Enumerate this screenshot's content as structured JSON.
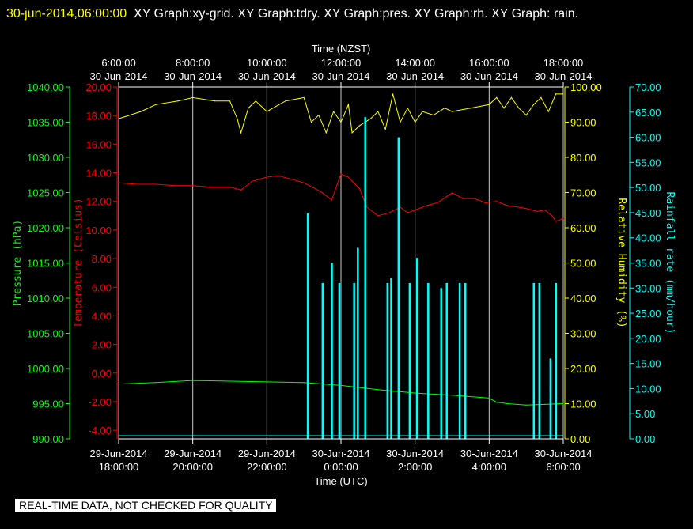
{
  "header": {
    "timestamp": "30-jun-2014,06:00:00",
    "graphs": "XY Graph:xy-grid.  XY Graph:tdry.  XY Graph:pres.  XY Graph:rh.  XY Graph: rain."
  },
  "notice": "REAL-TIME DATA, NOT CHECKED FOR QUALITY",
  "chart_data": {
    "type": "line",
    "top_axis_title": "Time (NZST)",
    "bottom_axis_title": "Time (UTC)",
    "top_ticks": [
      {
        "time": "6:00:00",
        "date": "30-Jun-2014"
      },
      {
        "time": "8:00:00",
        "date": "30-Jun-2014"
      },
      {
        "time": "10:00:00",
        "date": "30-Jun-2014"
      },
      {
        "time": "12:00:00",
        "date": "30-Jun-2014"
      },
      {
        "time": "14:00:00",
        "date": "30-Jun-2014"
      },
      {
        "time": "16:00:00",
        "date": "30-Jun-2014"
      },
      {
        "time": "18:00:00",
        "date": "30-Jun-2014"
      }
    ],
    "bottom_ticks": [
      {
        "date": "29-Jun-2014",
        "time": "18:00:00"
      },
      {
        "date": "29-Jun-2014",
        "time": "20:00:00"
      },
      {
        "date": "29-Jun-2014",
        "time": "22:00:00"
      },
      {
        "date": "30-Jun-2014",
        "time": "0:00:00"
      },
      {
        "date": "30-Jun-2014",
        "time": "2:00:00"
      },
      {
        "date": "30-Jun-2014",
        "time": "4:00:00"
      },
      {
        "date": "30-Jun-2014",
        "time": "6:00:00"
      }
    ],
    "x_utc_hours": [
      18,
      20,
      22,
      24,
      26,
      28,
      30
    ],
    "xlim_utc_hours": [
      18,
      30
    ],
    "axes": {
      "pressure": {
        "label": "Pressure (hPa)",
        "color": "#00ff00",
        "ylim": [
          990,
          1040
        ],
        "ticks": [
          "990.00",
          "995.00",
          "1000.00",
          "1005.00",
          "1010.00",
          "1015.00",
          "1020.00",
          "1025.00",
          "1030.00",
          "1035.00",
          "1040.00"
        ]
      },
      "temperature": {
        "label": "Temperature (Celsius)",
        "color": "#ff0000",
        "ylim": [
          -4.6,
          20
        ],
        "ticks": [
          "-4.00",
          "-2.00",
          "0.00",
          "2.00",
          "4.00",
          "6.00",
          "8.00",
          "10.00",
          "12.00",
          "14.00",
          "16.00",
          "18.00",
          "20.00"
        ]
      },
      "humidity": {
        "label": "Relative Humidity (%)",
        "color": "#ffff00",
        "ylim": [
          0,
          100
        ],
        "ticks": [
          "0.00",
          "10.00",
          "20.00",
          "30.00",
          "40.00",
          "50.00",
          "60.00",
          "70.00",
          "80.00",
          "90.00",
          "100.00"
        ]
      },
      "rainfall": {
        "label": "Rainfall rate (mm/hour)",
        "color": "#00ffff",
        "ylim": [
          0,
          70
        ],
        "ticks": [
          "0.00",
          "5.00",
          "10.00",
          "15.00",
          "20.00",
          "25.00",
          "30.00",
          "35.00",
          "40.00",
          "45.00",
          "50.00",
          "55.00",
          "60.00",
          "65.00",
          "70.00"
        ]
      }
    },
    "series": [
      {
        "name": "tdry",
        "axis": "temperature",
        "color": "#ff0000",
        "x": [
          18,
          18.5,
          19,
          19.5,
          20,
          20.5,
          21,
          21.3,
          21.6,
          22,
          22.3,
          22.6,
          23,
          23.3,
          23.5,
          23.75,
          23.9,
          24,
          24.2,
          24.5,
          24.7,
          25,
          25.3,
          25.6,
          25.8,
          26,
          26.3,
          26.6,
          27,
          27.3,
          27.6,
          27.9,
          28.2,
          28.5,
          28.8,
          29,
          29.3,
          29.5,
          29.7,
          29.8,
          30
        ],
        "values": [
          13.3,
          13.2,
          13.2,
          13.1,
          13.1,
          13.0,
          13.0,
          12.8,
          13.4,
          13.7,
          13.8,
          13.6,
          13.3,
          12.9,
          12.6,
          12.1,
          13.2,
          13.9,
          13.7,
          12.9,
          11.6,
          11.0,
          11.2,
          11.6,
          11.2,
          11.4,
          11.7,
          11.9,
          12.6,
          12.2,
          12.2,
          11.9,
          12.0,
          11.7,
          11.6,
          11.5,
          11.3,
          11.4,
          11.0,
          10.6,
          10.8
        ]
      },
      {
        "name": "pres",
        "axis": "pressure",
        "color": "#00ff00",
        "x": [
          18,
          19,
          20,
          21,
          22,
          23,
          24,
          25,
          26,
          27,
          28,
          28.2,
          28.5,
          29,
          29.5,
          30
        ],
        "values": [
          997.8,
          998.0,
          998.3,
          998.2,
          998.1,
          998.0,
          997.6,
          997.0,
          996.5,
          996.2,
          995.8,
          995.2,
          995.0,
          994.8,
          994.9,
          995.0
        ]
      },
      {
        "name": "rh",
        "axis": "humidity",
        "color": "#ffff00",
        "x": [
          18,
          18.6,
          19,
          19.6,
          20,
          20.6,
          21,
          21.2,
          21.3,
          21.5,
          21.7,
          22,
          22.5,
          23,
          23.2,
          23.4,
          23.6,
          23.8,
          24,
          24.2,
          24.3,
          24.5,
          24.8,
          25,
          25.2,
          25.4,
          25.6,
          25.8,
          26,
          26.2,
          26.5,
          26.8,
          27,
          27.5,
          28,
          28.2,
          28.4,
          28.6,
          28.8,
          29,
          29.2,
          29.4,
          29.6,
          29.8,
          30
        ],
        "values": [
          91,
          93,
          95,
          96,
          97,
          96,
          96,
          91,
          87,
          94,
          96,
          93,
          96,
          97,
          90,
          92,
          87,
          93,
          90,
          95,
          87,
          89,
          91,
          93,
          88,
          98,
          90,
          94,
          90,
          93,
          92,
          94,
          93,
          94,
          95,
          97,
          94,
          97,
          94,
          92,
          95,
          97,
          93,
          98,
          98
        ]
      },
      {
        "name": "rain",
        "axis": "rainfall",
        "color": "#00ffff",
        "type": "bar",
        "x": [
          23.1,
          23.5,
          23.75,
          23.95,
          24.35,
          24.45,
          24.65,
          25.25,
          25.35,
          25.55,
          25.85,
          26.05,
          26.35,
          26.7,
          26.85,
          27.2,
          27.35,
          29.2,
          29.35,
          29.65,
          29.8
        ],
        "values": [
          45,
          31,
          35,
          31,
          31,
          38,
          64,
          31,
          32,
          60,
          31,
          36,
          31,
          30,
          31,
          31,
          31,
          31,
          31,
          16,
          31
        ]
      }
    ]
  }
}
